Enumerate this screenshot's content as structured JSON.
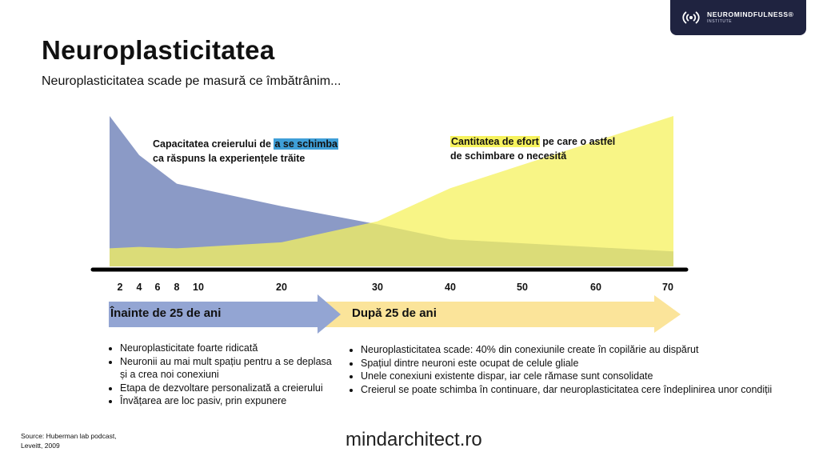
{
  "brand": {
    "name": "NEUROMINDFULNESS®",
    "sub": "INSTITUTE",
    "logo_icon": "brain-waves-icon",
    "bg_color": "#1f2340"
  },
  "title": "Neuroplasticitatea",
  "subtitle": "Neuroplasticitatea scade pe masură ce îmbătrânim...",
  "annotations": {
    "blue_pre": "Capacitatea creierului de ",
    "blue_hl": "a se schimba",
    "blue_post": "ca răspuns la experiențele trăite",
    "yellow_hl": "Cantitatea de efort",
    "yellow_post": " pe care o astfel de schimbare o necesită"
  },
  "axis_ticks": [
    "2",
    "4",
    "6",
    "8",
    "10",
    "20",
    "30",
    "40",
    "50",
    "60",
    "70"
  ],
  "chart_data": {
    "type": "area",
    "x": [
      2,
      4,
      8,
      20,
      30,
      40,
      70
    ],
    "series": [
      {
        "values": [
          100,
          74,
          55,
          40,
          28,
          18,
          10
        ],
        "color": "#8b9ac6"
      },
      {
        "values": [
          12,
          13,
          12,
          16,
          30,
          52,
          100
        ],
        "color": "#f6f25d"
      }
    ],
    "xlim": [
      2,
      70
    ]
  },
  "periods": {
    "before": {
      "label": "Înainte de 25 de ani",
      "color": "#93a5d3"
    },
    "after": {
      "label": "După 25 de ani",
      "color": "#fbe49a"
    }
  },
  "bullets_left": [
    "Neuroplasticitate foarte ridicată",
    "Neuronii au mai mult spațiu pentru a se deplasa și a crea noi conexiuni",
    "Etapa de dezvoltare personalizată a creierului",
    "Învățarea are loc pasiv, prin expunere"
  ],
  "bullets_right": [
    "Neuroplasticitatea scade: 40% din conexiunile create în copilărie au dispărut",
    "Spațiul dintre neuroni este ocupat de celule gliale",
    "Unele conexiuni existente dispar, iar cele rămase sunt consolidate",
    "Creierul se poate schimba în continuare, dar neuroplasticitatea cere îndeplinirea unor condiții"
  ],
  "source": "Source: Huberman lab podcast, Leveitt, 2009",
  "site": "mindarchitect.ro"
}
